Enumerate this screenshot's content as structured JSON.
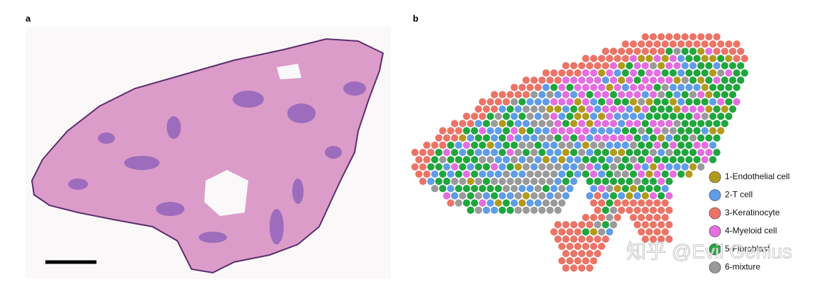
{
  "panels": [
    {
      "label": "a"
    },
    {
      "label": "b"
    }
  ],
  "legend": [
    {
      "name": "1-Endothelial cell",
      "color": "#b39a1c"
    },
    {
      "name": "2-T cell",
      "color": "#5f9de8"
    },
    {
      "name": "3-Keratinocyte",
      "color": "#ec7466"
    },
    {
      "name": "4-Myeloid cell",
      "color": "#e46ee0"
    },
    {
      "name": "5-Fibroblast",
      "color": "#1fa63c"
    },
    {
      "name": "6-mixture",
      "color": "#9a9a9a"
    }
  ],
  "watermark": "知乎 @Evil Genius"
}
